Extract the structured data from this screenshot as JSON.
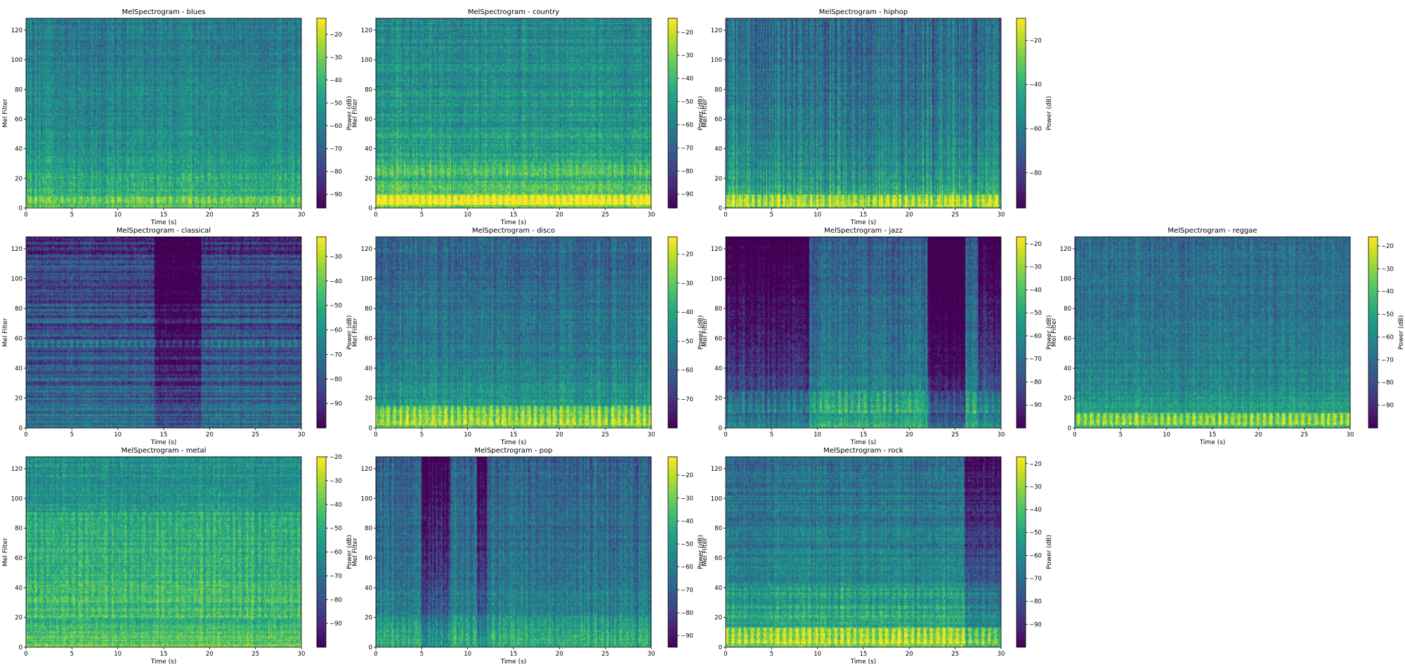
{
  "figure": {
    "xlabel": "Time (s)",
    "ylabel": "Mel Filter",
    "colorbar_label": "Power (dB)",
    "colormap": "viridis",
    "colormap_stops": [
      "#440154",
      "#3b528b",
      "#21918c",
      "#5ec962",
      "#fde725"
    ]
  },
  "chart_data": [
    {
      "type": "heatmap",
      "genre": "blues",
      "title": "MelSpectrogram - blues",
      "xlabel": "Time (s)",
      "ylabel": "Mel Filter",
      "xlim": [
        0,
        30
      ],
      "ylim": [
        0,
        128
      ],
      "xticks": [
        0,
        5,
        10,
        15,
        20,
        25,
        30
      ],
      "yticks": [
        0,
        20,
        40,
        60,
        80,
        100,
        120
      ],
      "colorbar": {
        "label": "Power (dB)",
        "range": [
          -96,
          -13
        ],
        "ticks": [
          -20,
          -30,
          -40,
          -50,
          -60,
          -70,
          -80,
          -90
        ]
      },
      "pattern": {
        "base": 0.52,
        "lowband": 0.22,
        "vstripes": 0.15,
        "hbands": 0.1,
        "dark": [],
        "brightbands": [
          [
            3,
            7,
            0.15
          ],
          [
            18,
            22,
            0.1
          ]
        ]
      }
    },
    {
      "type": "heatmap",
      "genre": "country",
      "title": "MelSpectrogram - country",
      "xlabel": "Time (s)",
      "ylabel": "Mel Filter",
      "xlim": [
        0,
        30
      ],
      "ylim": [
        0,
        128
      ],
      "xticks": [
        0,
        5,
        10,
        15,
        20,
        25,
        30
      ],
      "yticks": [
        0,
        20,
        40,
        60,
        80,
        100,
        120
      ],
      "colorbar": {
        "label": "Power (dB)",
        "range": [
          -96,
          -14
        ],
        "ticks": [
          -20,
          -30,
          -40,
          -50,
          -60,
          -70,
          -80,
          -90
        ]
      },
      "pattern": {
        "base": 0.58,
        "lowband": 0.28,
        "vstripes": 0.16,
        "hbands": 0.14,
        "dark": [],
        "brightbands": [
          [
            2,
            8,
            0.35
          ],
          [
            20,
            30,
            0.12
          ]
        ]
      }
    },
    {
      "type": "heatmap",
      "genre": "hiphop",
      "title": "MelSpectrogram - hiphop",
      "xlabel": "Time (s)",
      "ylabel": "Mel Filter",
      "xlim": [
        0,
        30
      ],
      "ylim": [
        0,
        128
      ],
      "xticks": [
        0,
        5,
        10,
        15,
        20,
        25,
        30
      ],
      "yticks": [
        0,
        20,
        40,
        60,
        80,
        100,
        120
      ],
      "colorbar": {
        "label": "Power (dB)",
        "range": [
          -96,
          -10
        ],
        "ticks": [
          -20,
          -40,
          -60,
          -80
        ]
      },
      "pattern": {
        "base": 0.46,
        "lowband": 0.3,
        "vstripes": 0.32,
        "hbands": 0.08,
        "dark": [],
        "brightbands": [
          [
            1,
            8,
            0.3
          ]
        ]
      }
    },
    {
      "type": "heatmap",
      "genre": "classical",
      "title": "MelSpectrogram - classical",
      "xlabel": "Time (s)",
      "ylabel": "Mel Filter",
      "xlim": [
        0,
        30
      ],
      "ylim": [
        0,
        128
      ],
      "xticks": [
        0,
        5,
        10,
        15,
        20,
        25,
        30
      ],
      "yticks": [
        0,
        20,
        40,
        60,
        80,
        100,
        120
      ],
      "colorbar": {
        "label": "Power (dB)",
        "range": [
          -100,
          -22
        ],
        "ticks": [
          -30,
          -40,
          -50,
          -60,
          -70,
          -80,
          -90
        ]
      },
      "pattern": {
        "base": 0.3,
        "lowband": 0.12,
        "vstripes": 0.1,
        "hbands": 0.28,
        "dark": [
          [
            14,
            19,
            0.12
          ]
        ],
        "brightbands": [
          [
            54,
            58,
            0.2
          ]
        ]
      }
    },
    {
      "type": "heatmap",
      "genre": "disco",
      "title": "MelSpectrogram - disco",
      "xlabel": "Time (s)",
      "ylabel": "Mel Filter",
      "xlim": [
        0,
        30
      ],
      "ylim": [
        0,
        128
      ],
      "xticks": [
        0,
        5,
        10,
        15,
        20,
        25,
        30
      ],
      "yticks": [
        0,
        20,
        40,
        60,
        80,
        100,
        120
      ],
      "colorbar": {
        "label": "Power (dB)",
        "range": [
          -80,
          -14
        ],
        "ticks": [
          -20,
          -30,
          -40,
          -50,
          -60,
          -70
        ]
      },
      "pattern": {
        "base": 0.44,
        "lowband": 0.32,
        "vstripes": 0.18,
        "hbands": 0.1,
        "dark": [],
        "brightbands": [
          [
            2,
            14,
            0.28
          ]
        ]
      }
    },
    {
      "type": "heatmap",
      "genre": "jazz",
      "title": "MelSpectrogram - jazz",
      "xlabel": "Time (s)",
      "ylabel": "Mel Filter",
      "xlim": [
        0,
        30
      ],
      "ylim": [
        0,
        128
      ],
      "xticks": [
        0,
        5,
        10,
        15,
        20,
        25,
        30
      ],
      "yticks": [
        0,
        20,
        40,
        60,
        80,
        100,
        120
      ],
      "colorbar": {
        "label": "Power (dB)",
        "range": [
          -100,
          -17
        ],
        "ticks": [
          -20,
          -30,
          -40,
          -50,
          -60,
          -70,
          -80,
          -90
        ]
      },
      "pattern": {
        "base": 0.42,
        "lowband": 0.22,
        "vstripes": 0.2,
        "hbands": 0.08,
        "dark": [
          [
            0,
            9,
            0.16
          ],
          [
            22,
            26,
            0.3
          ],
          [
            27.5,
            30,
            0.12
          ]
        ],
        "brightbands": [
          [
            10,
            24,
            0.18
          ]
        ]
      }
    },
    {
      "type": "heatmap",
      "genre": "reggae",
      "title": "MelSpectrogram - reggae",
      "xlabel": "Time (s)",
      "ylabel": "Mel Filter",
      "xlim": [
        0,
        30
      ],
      "ylim": [
        0,
        128
      ],
      "xticks": [
        0,
        5,
        10,
        15,
        20,
        25,
        30
      ],
      "yticks": [
        0,
        20,
        40,
        60,
        80,
        100,
        120
      ],
      "colorbar": {
        "label": "Power (dB)",
        "range": [
          -100,
          -16
        ],
        "ticks": [
          -20,
          -30,
          -40,
          -50,
          -60,
          -70,
          -80,
          -90
        ]
      },
      "pattern": {
        "base": 0.46,
        "lowband": 0.22,
        "vstripes": 0.14,
        "hbands": 0.08,
        "dark": [],
        "brightbands": [
          [
            2,
            9,
            0.32
          ]
        ]
      }
    },
    {
      "type": "heatmap",
      "genre": "metal",
      "title": "MelSpectrogram - metal",
      "xlabel": "Time (s)",
      "ylabel": "Mel Filter",
      "xlim": [
        0,
        30
      ],
      "ylim": [
        0,
        128
      ],
      "xticks": [
        0,
        5,
        10,
        15,
        20,
        25,
        30
      ],
      "yticks": [
        0,
        20,
        40,
        60,
        80,
        100,
        120
      ],
      "colorbar": {
        "label": "Power (dB)",
        "range": [
          -100,
          -20
        ],
        "ticks": [
          -20,
          -30,
          -40,
          -50,
          -60,
          -70,
          -80,
          -90
        ]
      },
      "pattern": {
        "base": 0.62,
        "lowband": 0.14,
        "vstripes": 0.12,
        "hbands": 0.12,
        "dark": [],
        "brightbands": [
          [
            20,
            90,
            0.12
          ]
        ]
      }
    },
    {
      "type": "heatmap",
      "genre": "pop",
      "title": "MelSpectrogram - pop",
      "xlabel": "Time (s)",
      "ylabel": "Mel Filter",
      "xlim": [
        0,
        30
      ],
      "ylim": [
        0,
        128
      ],
      "xticks": [
        0,
        5,
        10,
        15,
        20,
        25,
        30
      ],
      "yticks": [
        0,
        20,
        40,
        60,
        80,
        100,
        120
      ],
      "colorbar": {
        "label": "Power (dB)",
        "range": [
          -95,
          -12
        ],
        "ticks": [
          -20,
          -30,
          -40,
          -50,
          -60,
          -70,
          -80,
          -90
        ]
      },
      "pattern": {
        "base": 0.42,
        "lowband": 0.2,
        "vstripes": 0.2,
        "hbands": 0.08,
        "dark": [
          [
            5,
            8,
            0.1
          ],
          [
            11,
            12,
            0.1
          ]
        ],
        "brightbands": [
          [
            2,
            20,
            0.1
          ]
        ]
      }
    },
    {
      "type": "heatmap",
      "genre": "rock",
      "title": "MelSpectrogram - rock",
      "xlabel": "Time (s)",
      "ylabel": "Mel Filter",
      "xlim": [
        0,
        30
      ],
      "ylim": [
        0,
        128
      ],
      "xticks": [
        0,
        5,
        10,
        15,
        20,
        25,
        30
      ],
      "yticks": [
        0,
        20,
        40,
        60,
        80,
        100,
        120
      ],
      "colorbar": {
        "label": "Power (dB)",
        "range": [
          -100,
          -17
        ],
        "ticks": [
          -20,
          -30,
          -40,
          -50,
          -60,
          -70,
          -80,
          -90
        ]
      },
      "pattern": {
        "base": 0.48,
        "lowband": 0.3,
        "vstripes": 0.14,
        "hbands": 0.14,
        "dark": [
          [
            26,
            30,
            0.1
          ]
        ],
        "brightbands": [
          [
            2,
            12,
            0.3
          ],
          [
            20,
            40,
            0.1
          ]
        ]
      }
    }
  ]
}
